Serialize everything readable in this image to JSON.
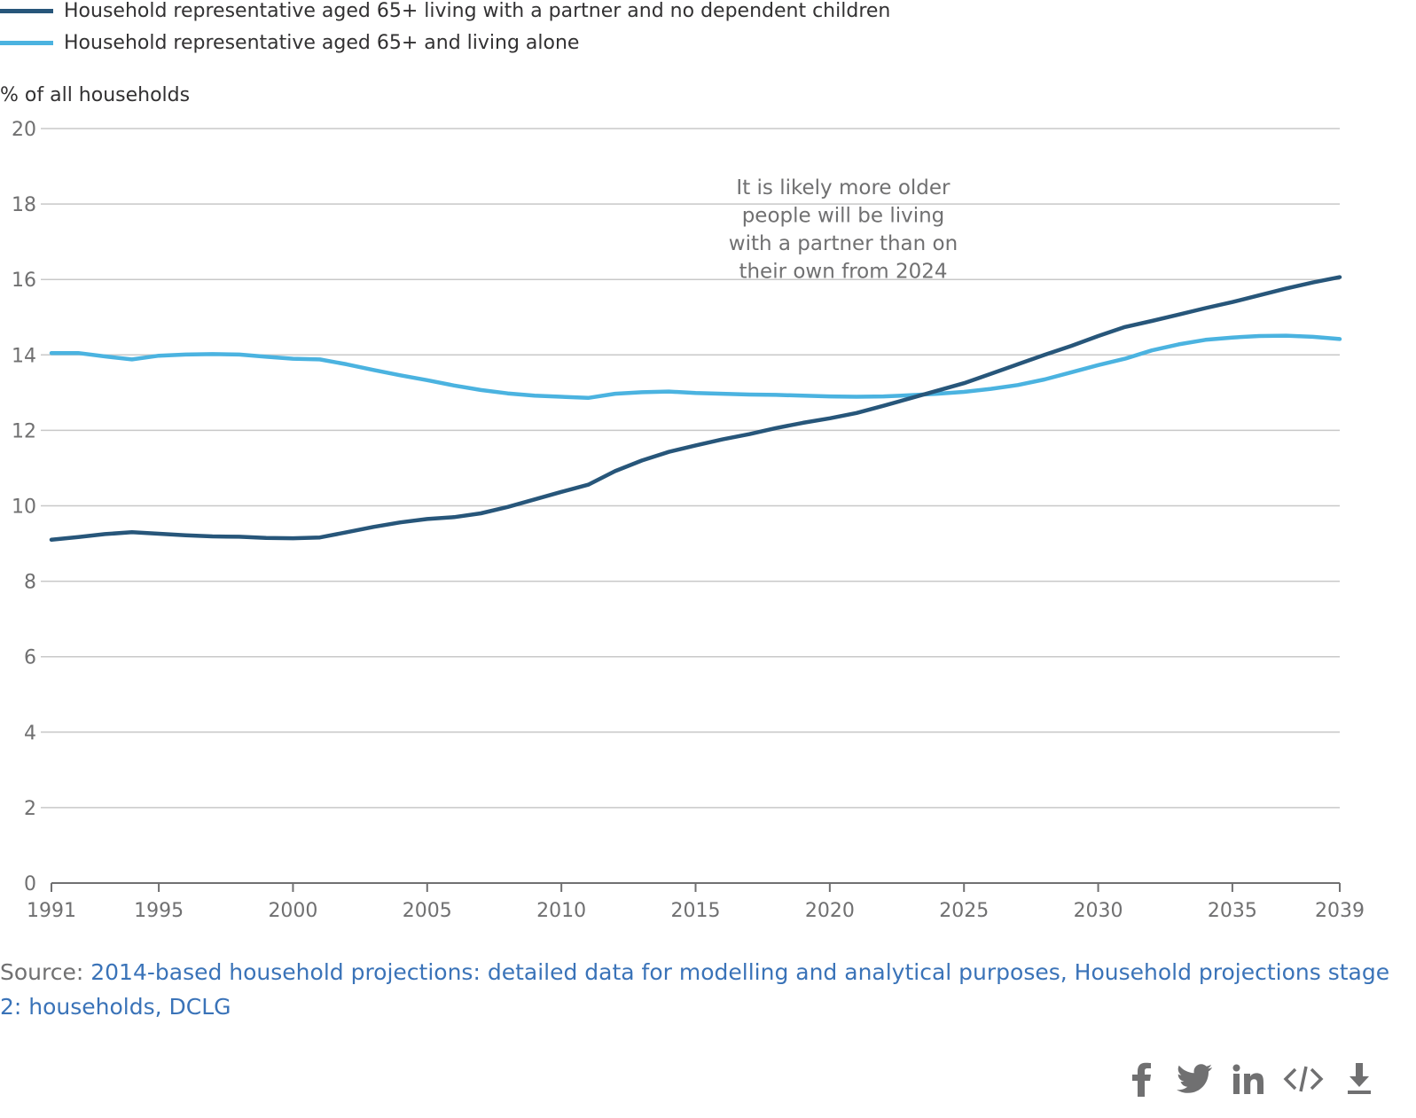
{
  "legend": [
    {
      "label": "Household representative aged 65+ living with a partner and no dependent children",
      "color": "#27567a"
    },
    {
      "label": "Household representative aged 65+ and living alone",
      "color": "#4bb3e0"
    }
  ],
  "chart_data": {
    "type": "line",
    "ylabel": "% of all households",
    "ylim": [
      0,
      20
    ],
    "yticks": [
      0,
      2,
      4,
      6,
      8,
      10,
      12,
      14,
      16,
      18,
      20
    ],
    "xlim": [
      1991,
      2039
    ],
    "xticks": [
      1991,
      1995,
      2000,
      2005,
      2010,
      2015,
      2020,
      2025,
      2030,
      2035,
      2039
    ],
    "grid": true,
    "legend_position": "top-left",
    "x": [
      1991,
      1992,
      1993,
      1994,
      1995,
      1996,
      1997,
      1998,
      1999,
      2000,
      2001,
      2002,
      2003,
      2004,
      2005,
      2006,
      2007,
      2008,
      2009,
      2010,
      2011,
      2012,
      2013,
      2014,
      2015,
      2016,
      2017,
      2018,
      2019,
      2020,
      2021,
      2022,
      2023,
      2024,
      2025,
      2026,
      2027,
      2028,
      2029,
      2030,
      2031,
      2032,
      2033,
      2034,
      2035,
      2036,
      2037,
      2038,
      2039
    ],
    "series": [
      {
        "name": "Household representative aged 65+ living with a partner and no dependent children",
        "color": "#27567a",
        "values": [
          9.1,
          9.17,
          9.25,
          9.3,
          9.26,
          9.22,
          9.19,
          9.18,
          9.15,
          9.14,
          9.16,
          9.3,
          9.44,
          9.56,
          9.65,
          9.7,
          9.8,
          9.97,
          10.17,
          10.37,
          10.56,
          10.92,
          11.2,
          11.43,
          11.6,
          11.76,
          11.9,
          12.06,
          12.2,
          12.32,
          12.46,
          12.65,
          12.85,
          13.05,
          13.25,
          13.5,
          13.75,
          14.0,
          14.24,
          14.5,
          14.74,
          14.9,
          15.07,
          15.24,
          15.4,
          15.58,
          15.76,
          15.92,
          16.06
        ]
      },
      {
        "name": "Household representative aged 65+ and living alone",
        "color": "#4bb3e0",
        "values": [
          14.05,
          14.05,
          13.96,
          13.88,
          13.98,
          14.01,
          14.02,
          14.01,
          13.95,
          13.9,
          13.88,
          13.75,
          13.6,
          13.46,
          13.33,
          13.19,
          13.07,
          12.98,
          12.92,
          12.89,
          12.86,
          12.97,
          13.01,
          13.03,
          12.99,
          12.97,
          12.95,
          12.94,
          12.92,
          12.9,
          12.89,
          12.9,
          12.93,
          12.97,
          13.02,
          13.1,
          13.2,
          13.35,
          13.54,
          13.73,
          13.9,
          14.12,
          14.28,
          14.4,
          14.46,
          14.5,
          14.51,
          14.48,
          14.42
        ]
      }
    ],
    "annotation": {
      "lines": [
        "It is likely more older",
        "people will be living",
        "with a partner than on",
        "their own from 2024"
      ],
      "x": 2020.5,
      "y": 15.2
    }
  },
  "source": {
    "prefix": "Source: ",
    "link_text": "2014-based household projections: detailed data for modelling and analytical purposes, Household projections stage 2: households, DCLG"
  },
  "share_icons": [
    "facebook-icon",
    "twitter-icon",
    "linkedin-icon",
    "embed-code-icon",
    "download-icon"
  ]
}
